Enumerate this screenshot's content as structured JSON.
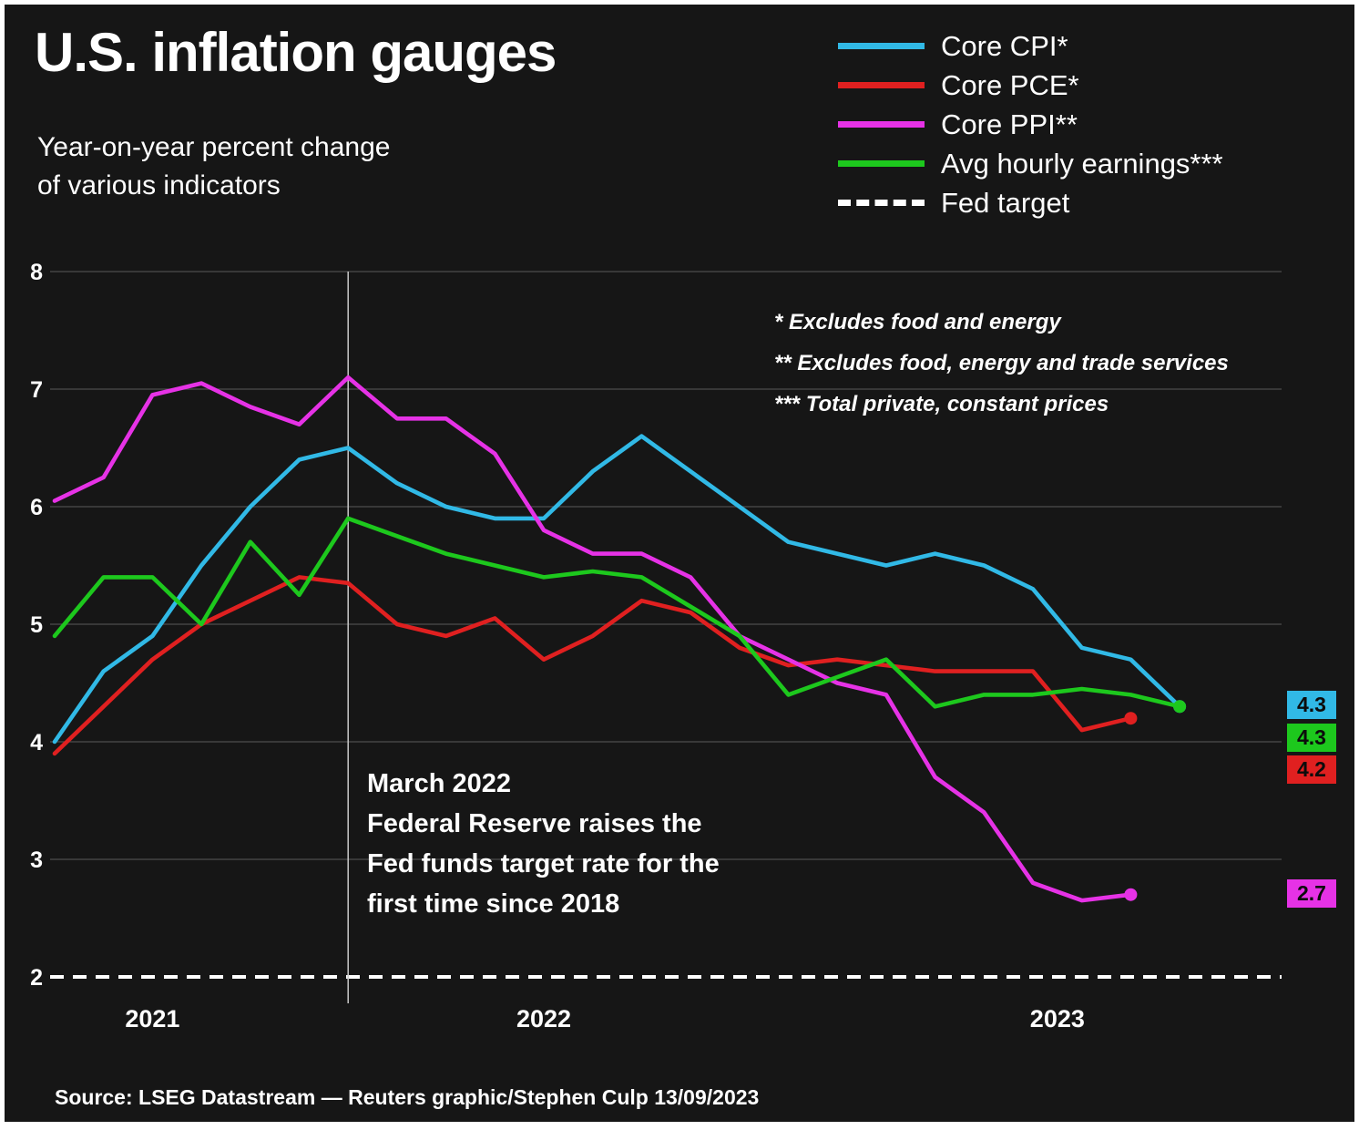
{
  "title": "U.S. inflation gauges",
  "subtitle": "Year-on-year percent change\nof various indicators",
  "legend": [
    {
      "label": "Core CPI*",
      "color": "#31b9e6",
      "style": "solid"
    },
    {
      "label": "Core PCE*",
      "color": "#e02020",
      "style": "solid"
    },
    {
      "label": "Core PPI**",
      "color": "#e632e6",
      "style": "solid"
    },
    {
      "label": "Avg hourly earnings***",
      "color": "#1dc81d",
      "style": "solid"
    },
    {
      "label": "Fed target",
      "color": "#ffffff",
      "style": "dashed"
    }
  ],
  "footnotes": [
    "* Excludes food and energy",
    "** Excludes food, energy and trade services",
    "*** Total private, constant prices"
  ],
  "annotation": "March 2022\nFederal Reserve raises the\nFed funds target rate for the\nfirst time since 2018",
  "end_labels": [
    {
      "value": "4.3",
      "color": "#31b9e6",
      "series": "Core CPI"
    },
    {
      "value": "4.3",
      "color": "#1dc81d",
      "series": "Avg hourly earnings"
    },
    {
      "value": "4.2",
      "color": "#e02020",
      "series": "Core PCE"
    },
    {
      "value": "2.7",
      "color": "#e632e6",
      "series": "Core PPI"
    }
  ],
  "source": "Source: LSEG Datastream — Reuters graphic/Stephen Culp 13/09/2023",
  "chart_data": {
    "type": "line",
    "title": "U.S. inflation gauges",
    "ylabel": "Year-on-year percent change",
    "ylim": [
      2,
      8
    ],
    "grid": true,
    "legend_position": "top-right",
    "y_ticks": [
      2,
      3,
      4,
      5,
      6,
      7,
      8
    ],
    "x_tick_labels": [
      {
        "label": "2021",
        "pos": 2
      },
      {
        "label": "2022",
        "pos": 10
      },
      {
        "label": "2023",
        "pos": 20.5
      }
    ],
    "x": [
      "2021-09",
      "2021-10",
      "2021-11",
      "2021-12",
      "2022-01",
      "2022-02",
      "2022-03",
      "2022-04",
      "2022-05",
      "2022-06",
      "2022-07",
      "2022-08",
      "2022-09",
      "2022-10",
      "2022-11",
      "2022-12",
      "2023-01",
      "2023-02",
      "2023-03",
      "2023-04",
      "2023-05",
      "2023-06",
      "2023-07",
      "2023-08"
    ],
    "fed_target": 2,
    "event_line": {
      "index": 6,
      "month": "2022-03",
      "text": "March 2022 Federal Reserve raises the Fed funds target rate for the first time since 2018"
    },
    "series": [
      {
        "name": "Core CPI",
        "color": "#31b9e6",
        "values": [
          4.0,
          4.6,
          4.9,
          5.5,
          6.0,
          6.4,
          6.5,
          6.2,
          6.0,
          5.9,
          5.9,
          6.3,
          6.6,
          6.3,
          6.0,
          5.7,
          5.6,
          5.5,
          5.6,
          5.5,
          5.3,
          4.8,
          4.7,
          4.3
        ]
      },
      {
        "name": "Core PCE",
        "color": "#e02020",
        "values": [
          3.9,
          4.3,
          4.7,
          5.0,
          5.2,
          5.4,
          5.35,
          5.0,
          4.9,
          5.05,
          4.7,
          4.9,
          5.2,
          5.1,
          4.8,
          4.65,
          4.7,
          4.65,
          4.6,
          4.6,
          4.6,
          4.1,
          4.2
        ]
      },
      {
        "name": "Core PPI",
        "color": "#e632e6",
        "values": [
          6.05,
          6.25,
          6.95,
          7.05,
          6.85,
          6.7,
          7.1,
          6.75,
          6.75,
          6.45,
          5.8,
          5.6,
          5.6,
          5.4,
          4.9,
          4.7,
          4.5,
          4.4,
          3.7,
          3.4,
          2.8,
          2.65,
          2.7
        ]
      },
      {
        "name": "Avg hourly earnings",
        "color": "#1dc81d",
        "values": [
          4.9,
          5.4,
          5.4,
          5.0,
          5.7,
          5.25,
          5.9,
          5.75,
          5.6,
          5.5,
          5.4,
          5.45,
          5.4,
          5.15,
          4.9,
          4.4,
          4.55,
          4.7,
          4.3,
          4.4,
          4.4,
          4.45,
          4.4,
          4.3
        ]
      }
    ]
  }
}
